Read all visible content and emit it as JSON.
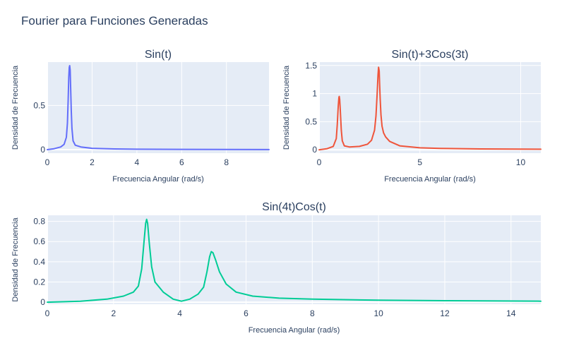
{
  "title": "Fourier para Funciones Generadas",
  "chart_data": [
    {
      "type": "line",
      "title": "Sin(t)",
      "xlabel": "Frecuencia Angular (rad/s)",
      "ylabel": "Densidad de Frecuencia",
      "xlim": [
        0,
        9.9
      ],
      "ylim": [
        -0.04,
        0.99
      ],
      "xticks": [
        0,
        2,
        4,
        6,
        8
      ],
      "yticks": [
        0,
        0.5
      ],
      "ytick_labels": [
        "0",
        "0.5"
      ],
      "color": "#636efa",
      "series": [
        {
          "x": [
            0,
            0.3,
            0.6,
            0.75,
            0.85,
            0.9,
            0.93,
            0.96,
            0.98,
            1.0,
            1.02,
            1.04,
            1.07,
            1.1,
            1.15,
            1.25,
            1.5,
            2,
            3,
            4,
            6,
            8,
            9.9
          ],
          "y": [
            0.0,
            0.01,
            0.03,
            0.06,
            0.14,
            0.3,
            0.55,
            0.82,
            0.93,
            0.95,
            0.9,
            0.72,
            0.45,
            0.24,
            0.1,
            0.05,
            0.03,
            0.015,
            0.008,
            0.005,
            0.003,
            0.002,
            0.001
          ]
        }
      ]
    },
    {
      "type": "line",
      "title": "Sin(t)+3Cos(3t)",
      "xlabel": "Frecuencia Angular (rad/s)",
      "ylabel": "Densidad de Frecuencia",
      "xlim": [
        0,
        11
      ],
      "ylim": [
        -0.06,
        1.56
      ],
      "xticks": [
        0,
        5,
        10
      ],
      "yticks": [
        0,
        0.5,
        1,
        1.5
      ],
      "ytick_labels": [
        "0",
        "0.5",
        "1",
        "1.5"
      ],
      "color": "#ef553b",
      "series": [
        {
          "x": [
            0,
            0.4,
            0.7,
            0.85,
            0.9,
            0.95,
            0.98,
            1.0,
            1.02,
            1.05,
            1.1,
            1.15,
            1.25,
            1.5,
            2,
            2.4,
            2.6,
            2.75,
            2.82,
            2.88,
            2.92,
            2.95,
            2.98,
            3.0,
            3.03,
            3.07,
            3.12,
            3.2,
            3.3,
            3.5,
            4,
            5,
            6,
            8,
            11
          ],
          "y": [
            0.0,
            0.02,
            0.06,
            0.2,
            0.45,
            0.78,
            0.93,
            0.95,
            0.9,
            0.7,
            0.35,
            0.16,
            0.07,
            0.05,
            0.06,
            0.1,
            0.17,
            0.35,
            0.6,
            1.0,
            1.33,
            1.47,
            1.4,
            1.2,
            0.9,
            0.62,
            0.42,
            0.3,
            0.23,
            0.15,
            0.07,
            0.035,
            0.025,
            0.015,
            0.01
          ]
        }
      ]
    },
    {
      "type": "line",
      "title": "Sin(4t)Cos(t)",
      "xlabel": "Frecuencia Angular (rad/s)",
      "ylabel": "Densidad de Frecuencia",
      "xlim": [
        0,
        14.9
      ],
      "ylim": [
        -0.02,
        0.86
      ],
      "xticks": [
        0,
        2,
        4,
        6,
        8,
        10,
        12,
        14
      ],
      "yticks": [
        0,
        0.2,
        0.4,
        0.6,
        0.8
      ],
      "ytick_labels": [
        "0",
        "0.2",
        "0.4",
        "0.6",
        "0.8"
      ],
      "color": "#00cc96",
      "series": [
        {
          "x": [
            0,
            1,
            1.8,
            2.3,
            2.6,
            2.75,
            2.85,
            2.92,
            2.97,
            3.0,
            3.03,
            3.08,
            3.15,
            3.25,
            3.5,
            3.8,
            4.05,
            4.3,
            4.55,
            4.72,
            4.82,
            4.9,
            4.95,
            5.0,
            5.08,
            5.2,
            5.4,
            5.7,
            6.2,
            7,
            8,
            10,
            12,
            14.9
          ],
          "y": [
            0.0,
            0.01,
            0.03,
            0.06,
            0.1,
            0.16,
            0.33,
            0.6,
            0.78,
            0.82,
            0.78,
            0.58,
            0.35,
            0.2,
            0.1,
            0.03,
            0.01,
            0.03,
            0.08,
            0.15,
            0.3,
            0.45,
            0.5,
            0.49,
            0.42,
            0.3,
            0.18,
            0.1,
            0.06,
            0.04,
            0.03,
            0.02,
            0.015,
            0.01
          ]
        }
      ]
    }
  ]
}
